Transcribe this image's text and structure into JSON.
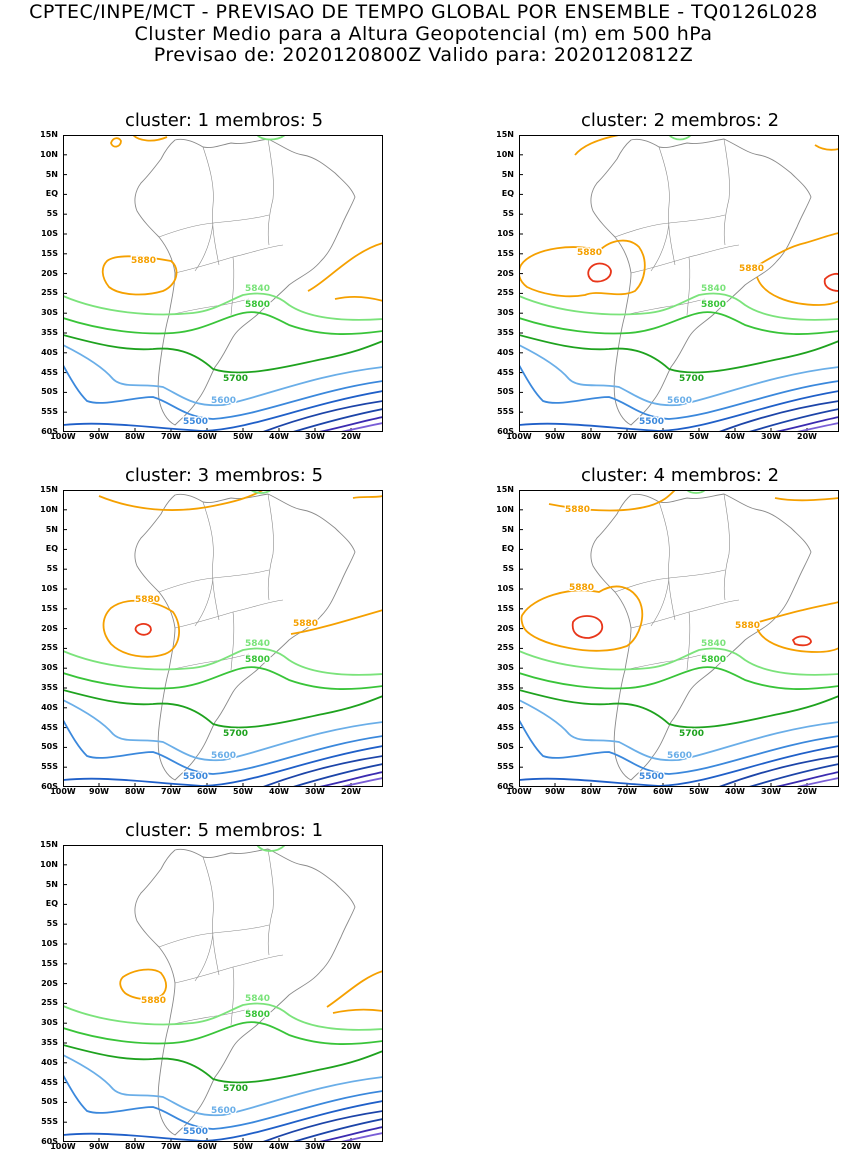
{
  "header": {
    "line1": "CPTEC/INPE/MCT - PREVISAO DE TEMPO GLOBAL POR ENSEMBLE - TQ0126L028",
    "line2": "Cluster Medio para a Altura Geopotencial (m) em 500 hPa",
    "line3": "Previsao de: 2020120800Z    Valido para: 2020120812Z"
  },
  "axes": {
    "y_ticks": [
      "15N",
      "10N",
      "5N",
      "EQ",
      "5S",
      "10S",
      "15S",
      "20S",
      "25S",
      "30S",
      "35S",
      "40S",
      "45S",
      "50S",
      "55S",
      "60S"
    ],
    "x_ticks": [
      "100W",
      "90W",
      "80W",
      "70W",
      "60W",
      "50W",
      "40W",
      "30W",
      "20W"
    ]
  },
  "contour_labels": [
    "5880",
    "5840",
    "5800",
    "5700",
    "5600",
    "5500"
  ],
  "colors": {
    "c5880": "#f5a000",
    "c5900": "#e8361a",
    "c5840": "#7be37b",
    "c5800": "#39c439",
    "c5700": "#1ea21e",
    "c5600": "#6aaee8",
    "c5500": "#3b88dc",
    "deep1": "#1f5fc8",
    "deep2": "#1c44a8",
    "deep3": "#3b2bb0",
    "deep4": "#7a5ed6",
    "coast": "#8a8a8a"
  },
  "panels": [
    {
      "title": "cluster: 1   membros: 5"
    },
    {
      "title": "cluster: 2   membros: 2"
    },
    {
      "title": "cluster: 3   membros: 5"
    },
    {
      "title": "cluster: 4   membros: 2"
    },
    {
      "title": "cluster: 5   membros: 1"
    }
  ]
}
